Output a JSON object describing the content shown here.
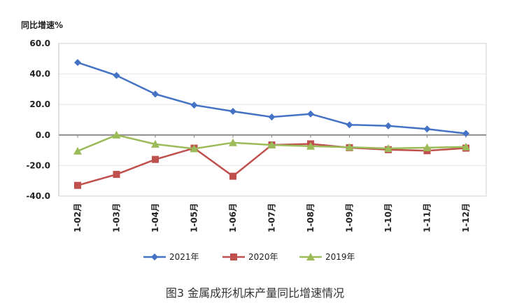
{
  "chart_data": {
    "type": "line",
    "ylabel": "同比增速%",
    "ylim": [
      -40,
      60
    ],
    "yticks": [
      60,
      40,
      20,
      0,
      -20,
      -40
    ],
    "ytick_labels": [
      "60.0",
      "40.0",
      "20.0",
      "0.0",
      "-20.0",
      "-40.0"
    ],
    "categories": [
      "1-02月",
      "1-03月",
      "1-04月",
      "1-05月",
      "1-06月",
      "1-07月",
      "1-08月",
      "1-09月",
      "1-10月",
      "1-11月",
      "1-12月"
    ],
    "series": [
      {
        "name": "2021年",
        "color": "#4472C4",
        "marker": "diamond",
        "values": [
          47.5,
          39.0,
          26.8,
          19.6,
          15.5,
          11.8,
          13.8,
          6.7,
          6.0,
          3.9,
          1.0
        ]
      },
      {
        "name": "2020年",
        "color": "#C0504D",
        "marker": "square",
        "values": [
          -33.0,
          -25.8,
          -16.0,
          -8.6,
          -27.0,
          -6.5,
          -5.8,
          -8.3,
          -9.6,
          -10.3,
          -8.6
        ]
      },
      {
        "name": "2019年",
        "color": "#9BBB59",
        "marker": "triangle",
        "values": [
          -10.5,
          0.0,
          -6.0,
          -9.0,
          -5.0,
          -6.5,
          -7.3,
          -8.0,
          -8.8,
          -8.3,
          -7.8
        ]
      }
    ],
    "legend_position": "bottom",
    "caption": "图3 金属成形机床产量同比增速情况"
  }
}
